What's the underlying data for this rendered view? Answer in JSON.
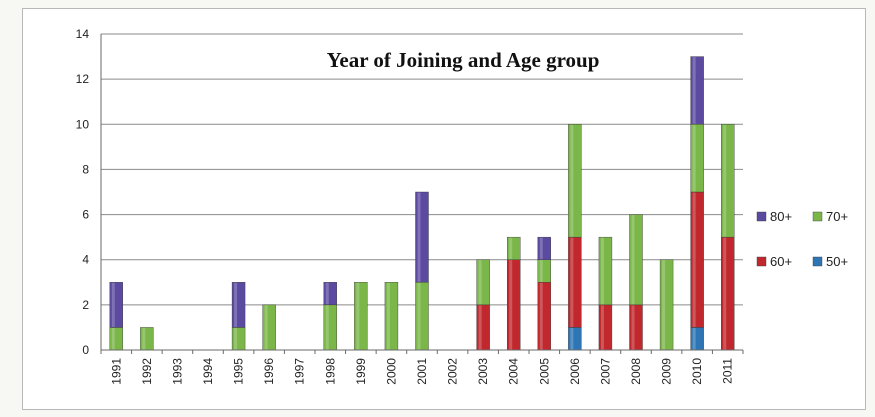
{
  "chart_data": {
    "type": "bar",
    "stacked": true,
    "title": "Year of Joining and Age group",
    "xlabel": "",
    "ylabel": "",
    "ylim": [
      0,
      14
    ],
    "yticks": [
      0,
      2,
      4,
      6,
      8,
      10,
      12,
      14
    ],
    "grid": true,
    "legend_position": "right",
    "categories": [
      "1991",
      "1992",
      "1993",
      "1994",
      "1995",
      "1996",
      "1997",
      "1998",
      "1999",
      "2000",
      "2001",
      "2002",
      "2003",
      "2004",
      "2005",
      "2006",
      "2007",
      "2008",
      "2009",
      "2010",
      "2011"
    ],
    "series": [
      {
        "name": "50+",
        "color": "#2e75b6",
        "values": [
          0,
          0,
          0,
          0,
          0,
          0,
          0,
          0,
          0,
          0,
          0,
          0,
          0,
          0,
          0,
          1,
          0,
          0,
          0,
          1,
          0
        ]
      },
      {
        "name": "60+",
        "color": "#c0282d",
        "values": [
          0,
          0,
          0,
          0,
          0,
          0,
          0,
          0,
          0,
          0,
          0,
          0,
          2,
          4,
          3,
          4,
          2,
          2,
          0,
          6,
          5
        ]
      },
      {
        "name": "70+",
        "color": "#7ab648",
        "values": [
          1,
          1,
          0,
          0,
          1,
          2,
          0,
          2,
          3,
          3,
          3,
          0,
          2,
          1,
          1,
          5,
          3,
          4,
          4,
          3,
          5
        ]
      },
      {
        "name": "80+",
        "color": "#5b4aa0",
        "values": [
          2,
          0,
          0,
          0,
          2,
          0,
          0,
          1,
          0,
          0,
          4,
          0,
          0,
          0,
          1,
          0,
          0,
          0,
          0,
          3,
          0
        ]
      }
    ]
  }
}
